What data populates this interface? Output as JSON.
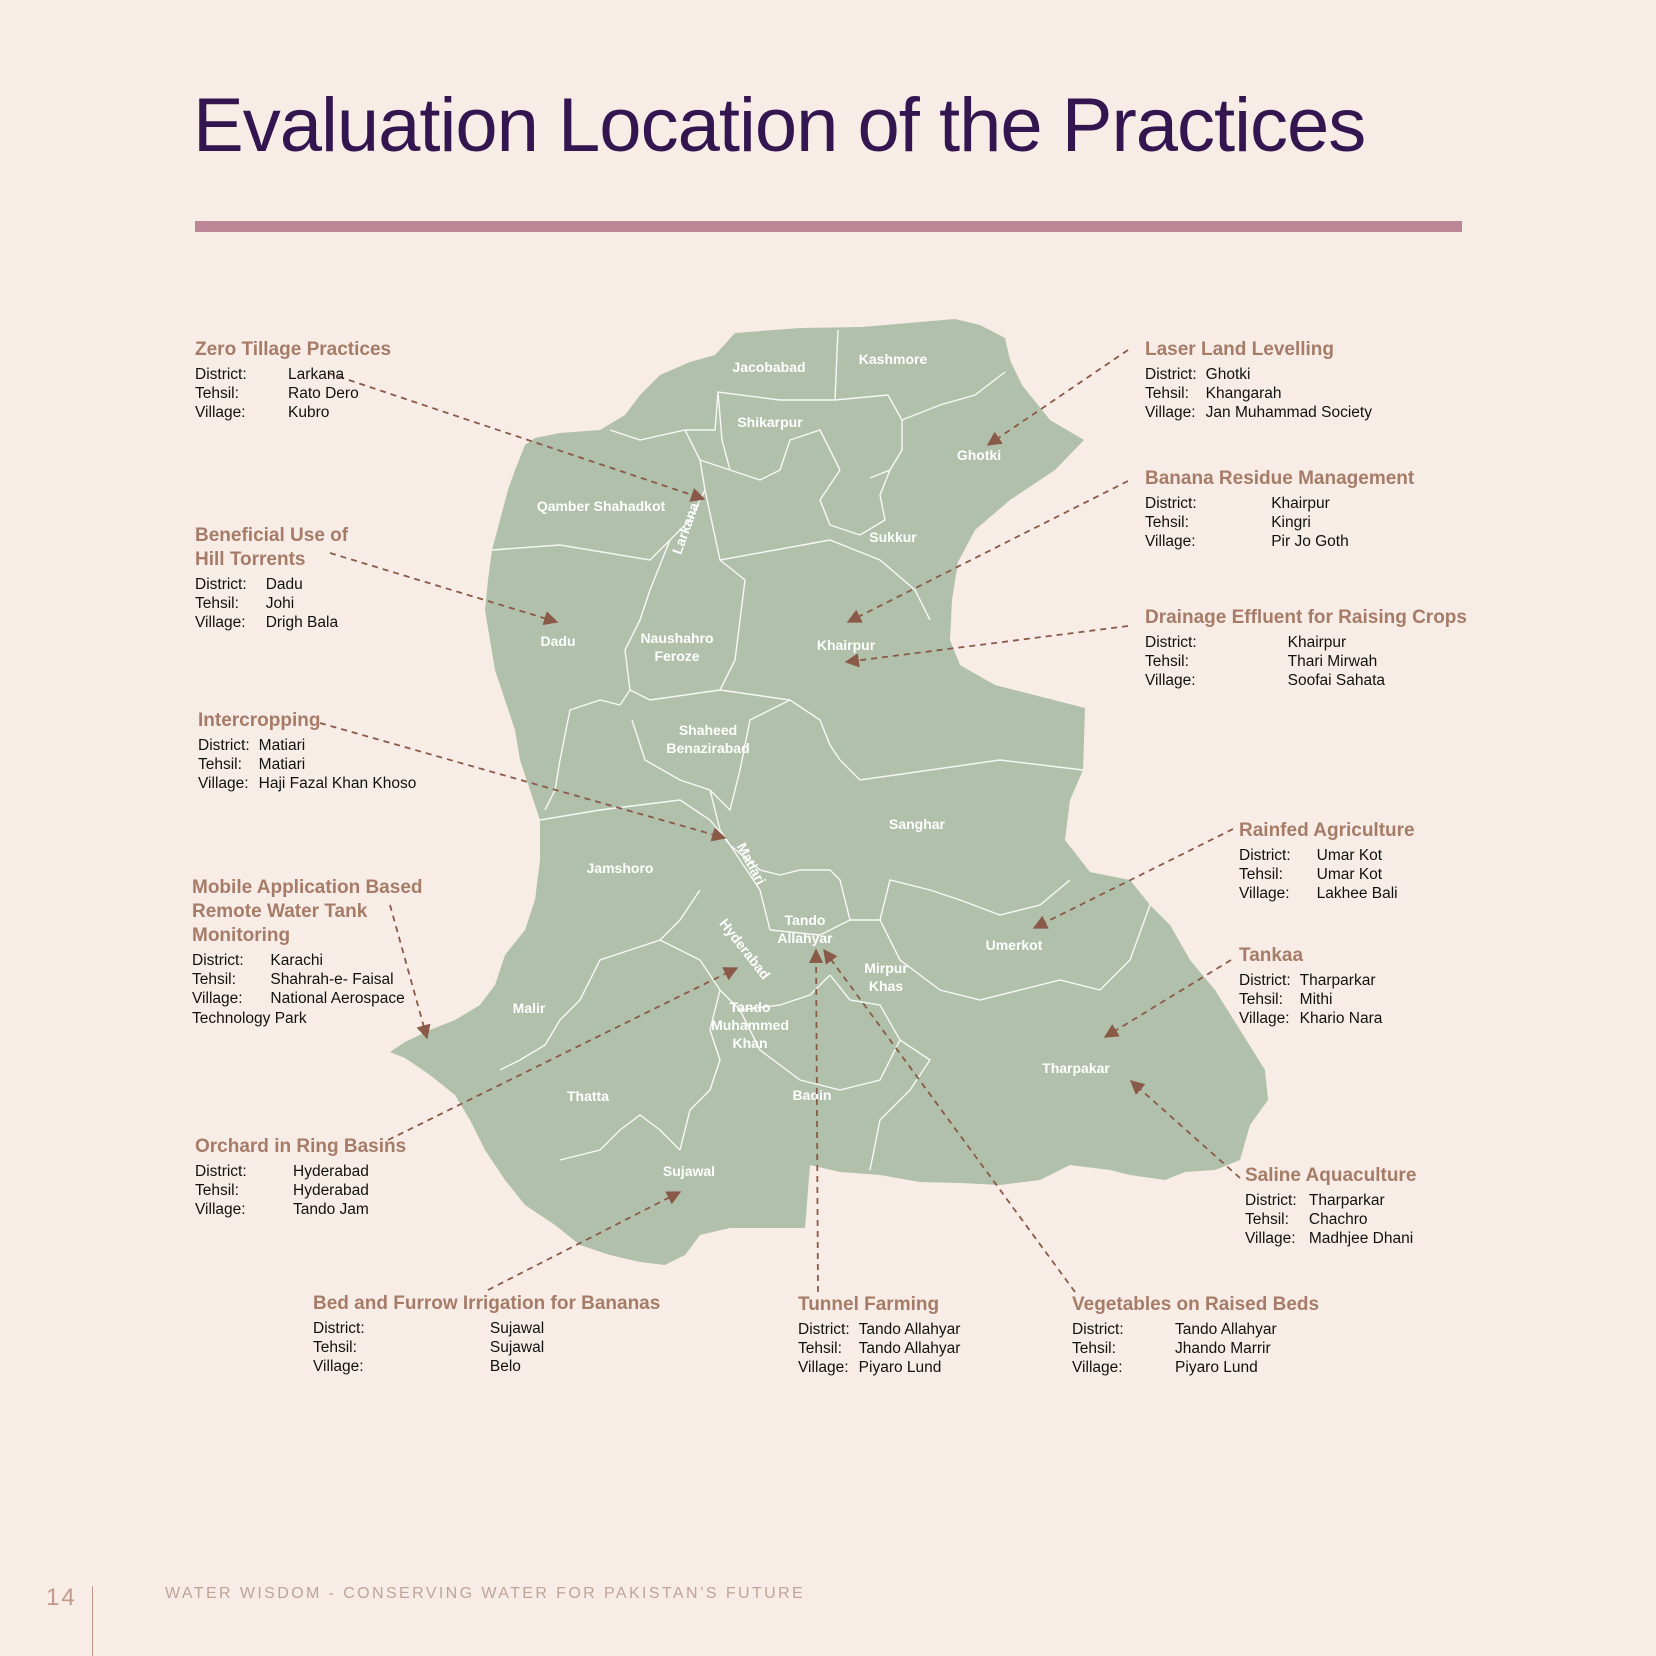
{
  "title": "Evaluation Location of the Practices",
  "labels": {
    "district": "District:",
    "tehsil": "Tehsil:",
    "village": "Village:"
  },
  "colors": {
    "background": "#f7ede6",
    "title": "#33154f",
    "rule": "#bc8696",
    "map_fill": "#b1c0aa",
    "heading": "#a67c68",
    "connector": "#8a5a48"
  },
  "districts": [
    "Jacobabad",
    "Kashmore",
    "Shikarpur",
    "Ghotki",
    "Qamber Shahadkot",
    "Larkana",
    "Sukkur",
    "Dadu",
    "Naushahro",
    "Feroze",
    "Khairpur",
    "Shaheed",
    "Benazirabad",
    "Sanghar",
    "Jamshoro",
    "Matiari",
    "Tando",
    "Allahyar",
    "Hyderabad",
    "Umerkot",
    "Mirpur",
    "Khas",
    "Malir",
    "Tando",
    "Muhammed",
    "Khan",
    "Tharpakar",
    "Thatta",
    "Badin",
    "Sujawal"
  ],
  "practices": [
    {
      "title": "Zero Tillage Practices",
      "district": "Larkana",
      "tehsil": "Rato Dero",
      "village": "Kubro"
    },
    {
      "title": "Beneficial Use of\nHill Torrents",
      "district": "Dadu",
      "tehsil": "Johi",
      "village": "Drigh Bala"
    },
    {
      "title": "Intercropping",
      "district": "Matiari",
      "tehsil": "Matiari",
      "village": "Haji Fazal Khan Khoso"
    },
    {
      "title": "Mobile Application Based\nRemote Water Tank\nMonitoring",
      "district": "Karachi",
      "tehsil": "Shahrah-e- Faisal",
      "village": "National Aerospace",
      "village_cont": "Technology Park"
    },
    {
      "title": "Orchard in Ring Basins",
      "district": "Hyderabad",
      "tehsil": "Hyderabad",
      "village": "Tando Jam"
    },
    {
      "title": "Bed and Furrow Irrigation for Bananas",
      "district": "Sujawal",
      "tehsil": "Sujawal",
      "village": "Belo"
    },
    {
      "title": "Tunnel Farming",
      "district": "Tando Allahyar",
      "tehsil": "Tando Allahyar",
      "village": "Piyaro Lund"
    },
    {
      "title": "Vegetables on Raised Beds",
      "district": "Tando Allahyar",
      "tehsil": "Jhando Marrir",
      "village": "Piyaro Lund"
    },
    {
      "title": "Laser Land Levelling",
      "district": "Ghotki",
      "tehsil": "Khangarah",
      "village": "Jan Muhammad Society"
    },
    {
      "title": "Banana Residue Management",
      "district": "Khairpur",
      "tehsil": "Kingri",
      "village": "Pir Jo Goth"
    },
    {
      "title": "Drainage Effluent for Raising Crops",
      "district": "Khairpur",
      "tehsil": "Thari Mirwah",
      "village": "Soofai Sahata"
    },
    {
      "title": "Rainfed Agriculture",
      "district": "Umar Kot",
      "tehsil": "Umar Kot",
      "village": "Lakhee Bali"
    },
    {
      "title": "Tankaa",
      "district": "Tharparkar",
      "tehsil": "Mithi",
      "village": "Khario Nara"
    },
    {
      "title": "Saline Aquaculture",
      "district": "Tharparkar",
      "tehsil": "Chachro",
      "village": "Madhjee Dhani"
    }
  ],
  "footer": {
    "page_number": "14",
    "text": "WATER WISDOM - CONSERVING WATER FOR PAKISTAN’S FUTURE"
  }
}
